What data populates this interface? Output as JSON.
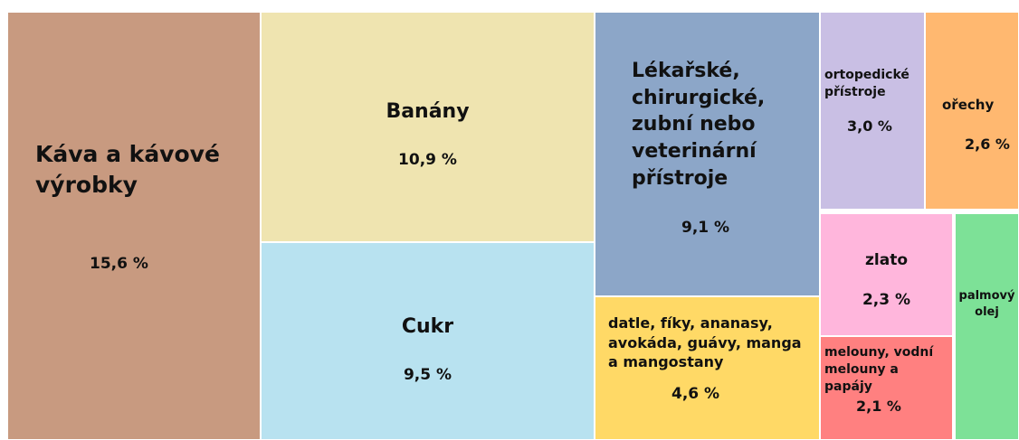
{
  "chart_data": {
    "type": "treemap",
    "categories": [
      "Káva a kávové výrobky",
      "Banány",
      "Cukr",
      "Lékařské, chirurgické, zubní nebo veterinární přístroje",
      "datle, fíky, ananasy, avokáda, guávy, manga a mangostany",
      "ortopedické přístroje",
      "ořechy",
      "zlato",
      "melouny, vodní melouny a papájy",
      "palmový olej"
    ],
    "values": [
      15.6,
      10.9,
      9.5,
      9.1,
      4.6,
      3.0,
      2.6,
      2.3,
      2.1,
      1.9
    ],
    "value_labels": [
      "15,6 %",
      "10,9 %",
      "9,5 %",
      "9,1 %",
      "4,6 %",
      "3,0 %",
      "2,6 %",
      "2,3 %",
      "2,1 %",
      null
    ],
    "colors": [
      "#c89a80",
      "#efe4b0",
      "#b8e2f0",
      "#8ca6c8",
      "#ffd966",
      "#c9bfe4",
      "#ffb870",
      "#ffb6dc",
      "#ff8080",
      "#7de197"
    ]
  }
}
